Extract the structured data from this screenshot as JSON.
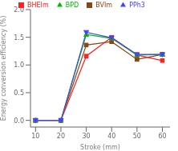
{
  "chart_data": {
    "type": "line",
    "title": "",
    "xlabel": "Stroke (mm)",
    "ylabel": "Energy conversion efficiency (%)",
    "x": [
      10,
      20,
      30,
      40,
      50,
      60
    ],
    "xlim": [
      8,
      63
    ],
    "ylim": [
      -0.12,
      2.0
    ],
    "xticks": [
      10,
      20,
      30,
      40,
      50,
      60
    ],
    "yticks": [
      {
        "value": 0,
        "label": "0.0"
      },
      0.5,
      {
        "value": 1,
        "label": "1.0"
      },
      1.5,
      {
        "value": 2,
        "label": "2.0"
      }
    ],
    "grid": false,
    "legend": "top",
    "series": [
      {
        "name": "BVIm",
        "color": "#8B4513",
        "marker": "square",
        "values": [
          0.0,
          0.0,
          1.36,
          1.42,
          1.1,
          1.19
        ]
      },
      {
        "name": "BHEIm",
        "color": "#FF2020",
        "marker": "square",
        "values": [
          0.0,
          0.0,
          1.16,
          1.5,
          1.18,
          1.08
        ]
      },
      {
        "name": "BPD",
        "color": "#00BB00",
        "marker": "triangle-up",
        "values": [
          0.0,
          0.0,
          1.55,
          1.48,
          1.18,
          1.19
        ]
      },
      {
        "name": "PPh3",
        "color": "#4444FF",
        "marker": "triangle-down",
        "values": [
          0.0,
          0.0,
          1.59,
          1.49,
          1.19,
          1.19
        ]
      }
    ]
  }
}
